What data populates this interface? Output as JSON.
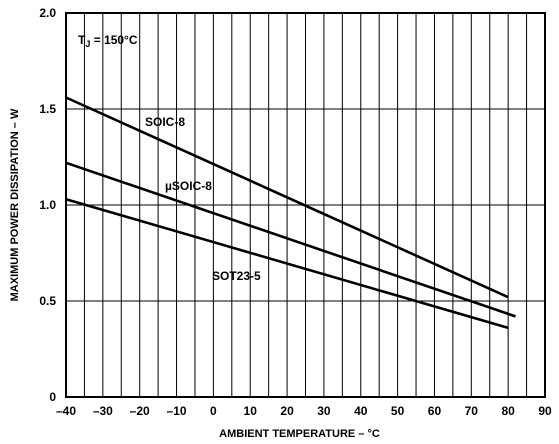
{
  "chart_data": {
    "type": "line",
    "title": "",
    "xlabel": "AMBIENT TEMPERATURE – °C",
    "ylabel": "MAXIMUM POWER DISSIPATION – W",
    "xlim": [
      -40,
      90
    ],
    "ylim": [
      0,
      2.0
    ],
    "x_ticks": [
      -40,
      -30,
      -20,
      -10,
      0,
      10,
      20,
      30,
      40,
      50,
      60,
      70,
      80,
      90
    ],
    "x_tick_labels": [
      "–40",
      "–30",
      "–20",
      "–10",
      "0",
      "10",
      "20",
      "30",
      "40",
      "50",
      "60",
      "70",
      "80",
      "90"
    ],
    "y_ticks": [
      0,
      0.5,
      1.0,
      1.5,
      2.0
    ],
    "y_tick_labels": [
      "0",
      "0.5",
      "1.0",
      "1.5",
      "2.0"
    ],
    "x_minor_grid": [
      -35,
      -25,
      -15,
      -5,
      5,
      15,
      25,
      35,
      45,
      55,
      65,
      75,
      85
    ],
    "grid": true,
    "legend": "none",
    "annotation": {
      "main": "T",
      "sub": "J",
      "rest": " = 150°C"
    },
    "series": [
      {
        "name": "SOIC-8",
        "x": [
          -40,
          80
        ],
        "y": [
          1.56,
          0.52
        ]
      },
      {
        "name": "µSOIC-8",
        "x": [
          -40,
          82
        ],
        "y": [
          1.22,
          0.42
        ]
      },
      {
        "name": "SOT23-5",
        "x": [
          -40,
          80
        ],
        "y": [
          1.03,
          0.36
        ]
      }
    ]
  }
}
